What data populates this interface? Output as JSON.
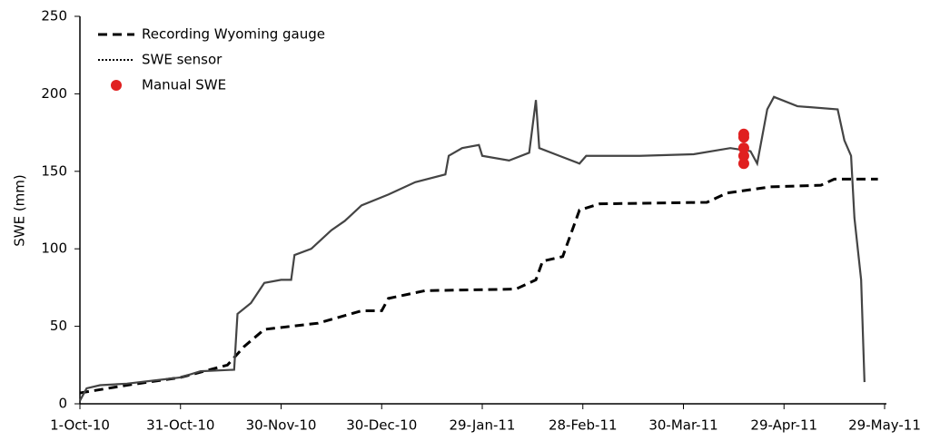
{
  "chart_data": {
    "type": "line",
    "ylabel": "SWE (mm)",
    "xlim": [
      "2010-10-01",
      "2011-05-29"
    ],
    "xticks": [
      {
        "value": "2010-10-01",
        "label": "1-Oct-10"
      },
      {
        "value": "2010-10-31",
        "label": "31-Oct-10"
      },
      {
        "value": "2010-11-30",
        "label": "30-Nov-10"
      },
      {
        "value": "2010-12-30",
        "label": "30-Dec-10"
      },
      {
        "value": "2011-01-29",
        "label": "29-Jan-11"
      },
      {
        "value": "2011-02-28",
        "label": "28-Feb-11"
      },
      {
        "value": "2011-03-30",
        "label": "30-Mar-11"
      },
      {
        "value": "2011-04-29",
        "label": "29-Apr-11"
      },
      {
        "value": "2011-05-29",
        "label": "29-May-11"
      }
    ],
    "ylim": [
      0,
      250
    ],
    "yticks": [
      0,
      50,
      100,
      150,
      200,
      250
    ],
    "legend": "upper left",
    "series": [
      {
        "name": "Recording Wyoming gauge",
        "color": "#000000",
        "style": "dashed",
        "x": [
          "2010-10-01",
          "2010-10-15",
          "2010-10-31",
          "2010-11-14",
          "2010-11-19",
          "2010-11-25",
          "2010-12-11",
          "2010-12-24",
          "2010-12-30",
          "2011-01-01",
          "2011-01-12",
          "2011-02-08",
          "2011-02-14",
          "2011-02-16",
          "2011-02-22",
          "2011-02-27",
          "2011-03-05",
          "2011-04-06",
          "2011-04-12",
          "2011-04-25",
          "2011-05-10",
          "2011-05-14",
          "2011-05-27"
        ],
        "values": [
          7,
          12,
          17,
          25,
          37,
          48,
          52,
          60,
          60,
          68,
          73,
          74,
          80,
          92,
          95,
          125,
          129,
          130,
          136,
          140,
          141,
          145,
          145
        ]
      },
      {
        "name": "SWE sensor",
        "color": "#444444",
        "style": "dotted",
        "x": [
          "2010-10-01",
          "2010-10-03",
          "2010-10-07",
          "2010-10-15",
          "2010-10-23",
          "2010-10-31",
          "2010-11-06",
          "2010-11-16",
          "2010-11-17",
          "2010-11-21",
          "2010-11-25",
          "2010-11-30",
          "2010-12-03",
          "2010-12-04",
          "2010-12-09",
          "2010-12-15",
          "2010-12-19",
          "2010-12-24",
          "2011-01-01",
          "2011-01-09",
          "2011-01-18",
          "2011-01-19",
          "2011-01-23",
          "2011-01-28",
          "2011-01-29",
          "2011-02-06",
          "2011-02-12",
          "2011-02-14",
          "2011-02-15",
          "2011-02-21",
          "2011-02-27",
          "2011-03-01",
          "2011-03-17",
          "2011-04-02",
          "2011-04-13",
          "2011-04-19",
          "2011-04-21",
          "2011-04-24",
          "2011-04-26",
          "2011-05-03",
          "2011-05-15",
          "2011-05-17",
          "2011-05-19",
          "2011-05-20",
          "2011-05-22",
          "2011-05-23"
        ],
        "values": [
          2,
          10,
          12,
          13,
          15,
          17,
          21,
          22,
          58,
          65,
          78,
          80,
          80,
          96,
          100,
          112,
          118,
          128,
          135,
          143,
          148,
          160,
          165,
          167,
          160,
          157,
          162,
          196,
          165,
          160,
          155,
          160,
          160,
          161,
          165,
          163,
          155,
          190,
          198,
          192,
          190,
          170,
          160,
          120,
          80,
          14
        ]
      },
      {
        "name": "Manual SWE",
        "color": "#e02020",
        "style": "marker",
        "x": [
          "2011-04-17",
          "2011-04-17",
          "2011-04-17",
          "2011-04-17",
          "2011-04-17"
        ],
        "values": [
          174,
          172,
          165,
          160,
          155
        ]
      }
    ]
  }
}
